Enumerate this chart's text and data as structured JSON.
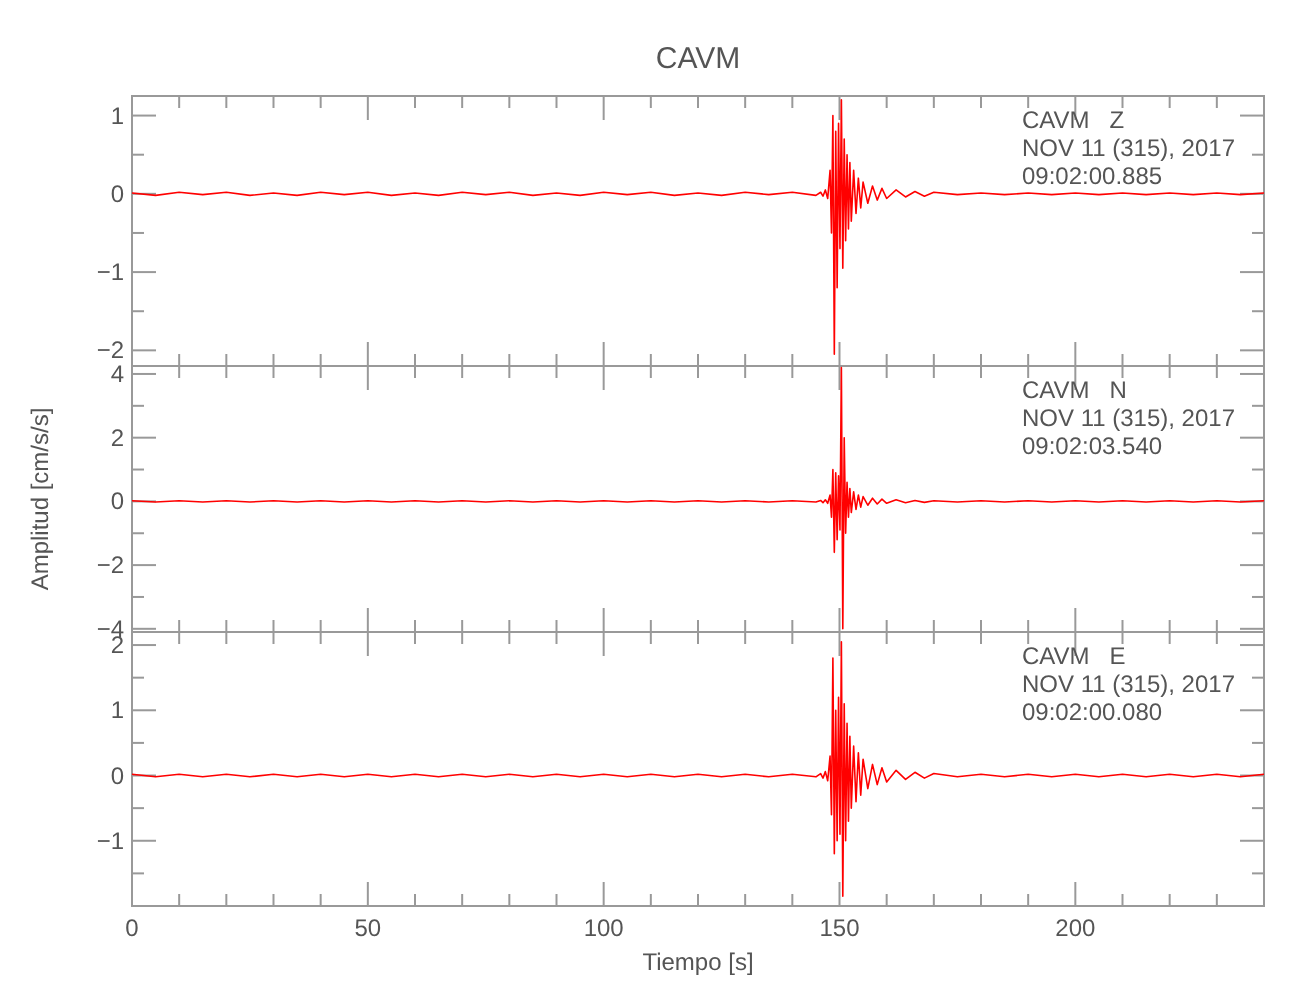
{
  "chart_data": [
    {
      "type": "line",
      "title": "CAVM",
      "annotations": [
        "CAVM   Z",
        "NOV 11 (315), 2017",
        "09:02:00.885"
      ],
      "tick_labels": "y",
      "xlim": [
        0,
        240
      ],
      "ylim": [
        -2.2,
        1.25
      ],
      "xticks": [
        0,
        {
          "value": 10,
          "label": null
        },
        {
          "value": 20,
          "label": null
        },
        {
          "value": 30,
          "label": null
        },
        {
          "value": 40,
          "label": null
        },
        50,
        {
          "value": 60,
          "label": null
        },
        {
          "value": 70,
          "label": null
        },
        {
          "value": 80,
          "label": null
        },
        {
          "value": 90,
          "label": null
        },
        100,
        {
          "value": 110,
          "label": null
        },
        {
          "value": 120,
          "label": null
        },
        {
          "value": 130,
          "label": null
        },
        {
          "value": 140,
          "label": null
        },
        150,
        {
          "value": 160,
          "label": null
        },
        {
          "value": 170,
          "label": null
        },
        {
          "value": 180,
          "label": null
        },
        {
          "value": 190,
          "label": null
        },
        200,
        {
          "value": 210,
          "label": null
        },
        {
          "value": 220,
          "label": null
        },
        {
          "value": 230,
          "label": null
        }
      ],
      "yticks": [
        {
          "value": -2,
          "label": "−2"
        },
        {
          "value": -1.5,
          "label": null
        },
        {
          "value": -1,
          "label": "−1"
        },
        {
          "value": -0.5,
          "label": null
        },
        0,
        {
          "value": 0.5,
          "label": null
        },
        1
      ],
      "series": [
        {
          "color": "#ff0000",
          "x": [
            0,
            5,
            10,
            15,
            20,
            25,
            30,
            35,
            40,
            45,
            50,
            55,
            60,
            65,
            70,
            75,
            80,
            85,
            90,
            95,
            100,
            105,
            110,
            115,
            120,
            125,
            130,
            135,
            140,
            145,
            146,
            146.5,
            147,
            147.5,
            148,
            148.3,
            148.6,
            148.9,
            149.2,
            149.5,
            149.8,
            150.1,
            150.4,
            150.7,
            151,
            151.3,
            151.6,
            151.9,
            152.2,
            152.5,
            153,
            153.5,
            154,
            154.5,
            155,
            156,
            157,
            158,
            159,
            160,
            162,
            164,
            166,
            168,
            170,
            175,
            180,
            185,
            190,
            195,
            200,
            205,
            210,
            215,
            220,
            225,
            230,
            235,
            240
          ],
          "values": [
            0.01,
            -0.02,
            0.02,
            -0.01,
            0.02,
            -0.02,
            0.01,
            -0.02,
            0.02,
            -0.01,
            0.02,
            -0.02,
            0.01,
            -0.02,
            0.02,
            -0.01,
            0.02,
            -0.02,
            0.01,
            -0.02,
            0.02,
            -0.01,
            0.02,
            -0.02,
            0.01,
            -0.02,
            0.02,
            -0.01,
            0.02,
            -0.02,
            0.02,
            -0.03,
            0.05,
            -0.06,
            0.3,
            -0.5,
            1.0,
            -2.05,
            0.8,
            -1.2,
            0.9,
            -0.7,
            1.2,
            -0.95,
            0.7,
            -0.6,
            0.5,
            -0.45,
            0.4,
            -0.35,
            0.3,
            -0.25,
            0.2,
            -0.18,
            0.15,
            -0.12,
            0.1,
            -0.08,
            0.07,
            -0.06,
            0.05,
            -0.04,
            0.03,
            -0.03,
            0.02,
            -0.01,
            0.01,
            -0.01,
            0.01,
            -0.01,
            0.01,
            -0.01,
            0.01,
            -0.01,
            0.01,
            -0.01,
            0.01,
            -0.01,
            0.01
          ]
        }
      ]
    },
    {
      "type": "line",
      "ylabel": "Amplitud [cm/s/s]",
      "annotations": [
        "CAVM   N",
        "NOV 11 (315), 2017",
        "09:02:03.540"
      ],
      "tick_labels": "y",
      "xlim": [
        0,
        240
      ],
      "ylim": [
        -4.1,
        4.25
      ],
      "xticks": [
        0,
        {
          "value": 10,
          "label": null
        },
        {
          "value": 20,
          "label": null
        },
        {
          "value": 30,
          "label": null
        },
        {
          "value": 40,
          "label": null
        },
        50,
        {
          "value": 60,
          "label": null
        },
        {
          "value": 70,
          "label": null
        },
        {
          "value": 80,
          "label": null
        },
        {
          "value": 90,
          "label": null
        },
        100,
        {
          "value": 110,
          "label": null
        },
        {
          "value": 120,
          "label": null
        },
        {
          "value": 130,
          "label": null
        },
        {
          "value": 140,
          "label": null
        },
        150,
        {
          "value": 160,
          "label": null
        },
        {
          "value": 170,
          "label": null
        },
        {
          "value": 180,
          "label": null
        },
        {
          "value": 190,
          "label": null
        },
        200,
        {
          "value": 210,
          "label": null
        },
        {
          "value": 220,
          "label": null
        },
        {
          "value": 230,
          "label": null
        }
      ],
      "yticks": [
        {
          "value": -4,
          "label": "−4"
        },
        {
          "value": -3,
          "label": null
        },
        {
          "value": -2,
          "label": "−2"
        },
        {
          "value": -1,
          "label": null
        },
        0,
        {
          "value": 1,
          "label": null
        },
        2,
        {
          "value": 3,
          "label": null
        },
        4
      ],
      "series": [
        {
          "color": "#ff0000",
          "x": [
            0,
            5,
            10,
            15,
            20,
            25,
            30,
            35,
            40,
            45,
            50,
            55,
            60,
            65,
            70,
            75,
            80,
            85,
            90,
            95,
            100,
            105,
            110,
            115,
            120,
            125,
            130,
            135,
            140,
            145,
            146,
            146.5,
            147,
            147.5,
            148,
            148.3,
            148.6,
            148.9,
            149.2,
            149.5,
            149.8,
            150.1,
            150.4,
            150.7,
            151,
            151.3,
            151.6,
            151.9,
            152.2,
            152.5,
            153,
            153.5,
            154,
            154.5,
            155,
            156,
            157,
            158,
            159,
            160,
            162,
            164,
            166,
            168,
            170,
            175,
            180,
            185,
            190,
            195,
            200,
            205,
            210,
            215,
            220,
            225,
            230,
            235,
            240
          ],
          "values": [
            0.02,
            -0.02,
            0.02,
            -0.02,
            0.02,
            -0.02,
            0.02,
            -0.02,
            0.02,
            -0.02,
            0.02,
            -0.02,
            0.02,
            -0.02,
            0.02,
            -0.02,
            0.02,
            -0.02,
            0.02,
            -0.02,
            0.02,
            -0.02,
            0.02,
            -0.02,
            0.02,
            -0.02,
            0.02,
            -0.02,
            0.02,
            -0.02,
            0.03,
            -0.04,
            0.05,
            -0.06,
            0.2,
            -0.5,
            1.0,
            -1.6,
            0.9,
            -1.2,
            0.8,
            -0.9,
            4.2,
            -4.0,
            2.0,
            -1.0,
            0.6,
            -0.5,
            0.4,
            -0.35,
            0.3,
            -0.25,
            0.2,
            -0.18,
            0.15,
            -0.12,
            0.1,
            -0.08,
            0.07,
            -0.06,
            0.05,
            -0.04,
            0.03,
            -0.03,
            0.02,
            -0.02,
            0.02,
            -0.02,
            0.02,
            -0.02,
            0.02,
            -0.02,
            0.02,
            -0.02,
            0.02,
            -0.02,
            0.02,
            -0.02,
            0.02
          ]
        }
      ]
    },
    {
      "type": "line",
      "xlabel": "Tiempo [s]",
      "annotations": [
        "CAVM   E",
        "NOV 11 (315), 2017",
        "09:02:00.080"
      ],
      "xlim": [
        0,
        240
      ],
      "ylim": [
        -2.0,
        2.2
      ],
      "xticks": [
        0,
        {
          "value": 10,
          "label": null
        },
        {
          "value": 20,
          "label": null
        },
        {
          "value": 30,
          "label": null
        },
        {
          "value": 40,
          "label": null
        },
        50,
        {
          "value": 60,
          "label": null
        },
        {
          "value": 70,
          "label": null
        },
        {
          "value": 80,
          "label": null
        },
        {
          "value": 90,
          "label": null
        },
        100,
        {
          "value": 110,
          "label": null
        },
        {
          "value": 120,
          "label": null
        },
        {
          "value": 130,
          "label": null
        },
        {
          "value": 140,
          "label": null
        },
        150,
        {
          "value": 160,
          "label": null
        },
        {
          "value": 170,
          "label": null
        },
        {
          "value": 180,
          "label": null
        },
        {
          "value": 190,
          "label": null
        },
        200,
        {
          "value": 210,
          "label": null
        },
        {
          "value": 220,
          "label": null
        },
        {
          "value": 230,
          "label": null
        }
      ],
      "yticks": [
        {
          "value": -1.5,
          "label": null
        },
        {
          "value": -1,
          "label": "−1"
        },
        {
          "value": -0.5,
          "label": null
        },
        0,
        {
          "value": 0.5,
          "label": null
        },
        1,
        {
          "value": 1.5,
          "label": null
        },
        2
      ],
      "series": [
        {
          "color": "#ff0000",
          "x": [
            0,
            5,
            10,
            15,
            20,
            25,
            30,
            35,
            40,
            45,
            50,
            55,
            60,
            65,
            70,
            75,
            80,
            85,
            90,
            95,
            100,
            105,
            110,
            115,
            120,
            125,
            130,
            135,
            140,
            145,
            146,
            146.5,
            147,
            147.5,
            148,
            148.3,
            148.6,
            148.9,
            149.2,
            149.5,
            149.8,
            150.1,
            150.4,
            150.7,
            151,
            151.3,
            151.6,
            151.9,
            152.2,
            152.5,
            153,
            153.5,
            154,
            154.5,
            155,
            156,
            157,
            158,
            159,
            160,
            162,
            164,
            166,
            168,
            170,
            175,
            180,
            185,
            190,
            195,
            200,
            205,
            210,
            215,
            220,
            225,
            230,
            235,
            240
          ],
          "values": [
            0.02,
            -0.02,
            0.02,
            -0.02,
            0.02,
            -0.02,
            0.02,
            -0.02,
            0.02,
            -0.02,
            0.02,
            -0.02,
            0.02,
            -0.02,
            0.02,
            -0.02,
            0.02,
            -0.02,
            0.02,
            -0.02,
            0.02,
            -0.02,
            0.02,
            -0.02,
            0.02,
            -0.02,
            0.02,
            -0.02,
            0.02,
            -0.02,
            0.03,
            -0.04,
            0.06,
            -0.08,
            0.3,
            -0.6,
            1.8,
            -1.2,
            1.0,
            -1.0,
            1.2,
            -0.9,
            2.05,
            -1.85,
            1.1,
            -1.0,
            0.8,
            -0.7,
            0.6,
            -0.5,
            0.45,
            -0.4,
            0.35,
            -0.3,
            0.25,
            -0.2,
            0.17,
            -0.14,
            0.12,
            -0.1,
            0.08,
            -0.06,
            0.05,
            -0.04,
            0.03,
            -0.02,
            0.02,
            -0.02,
            0.02,
            -0.02,
            0.02,
            -0.02,
            0.02,
            -0.02,
            0.02,
            -0.02,
            0.02,
            -0.02,
            0.02
          ]
        }
      ]
    }
  ]
}
